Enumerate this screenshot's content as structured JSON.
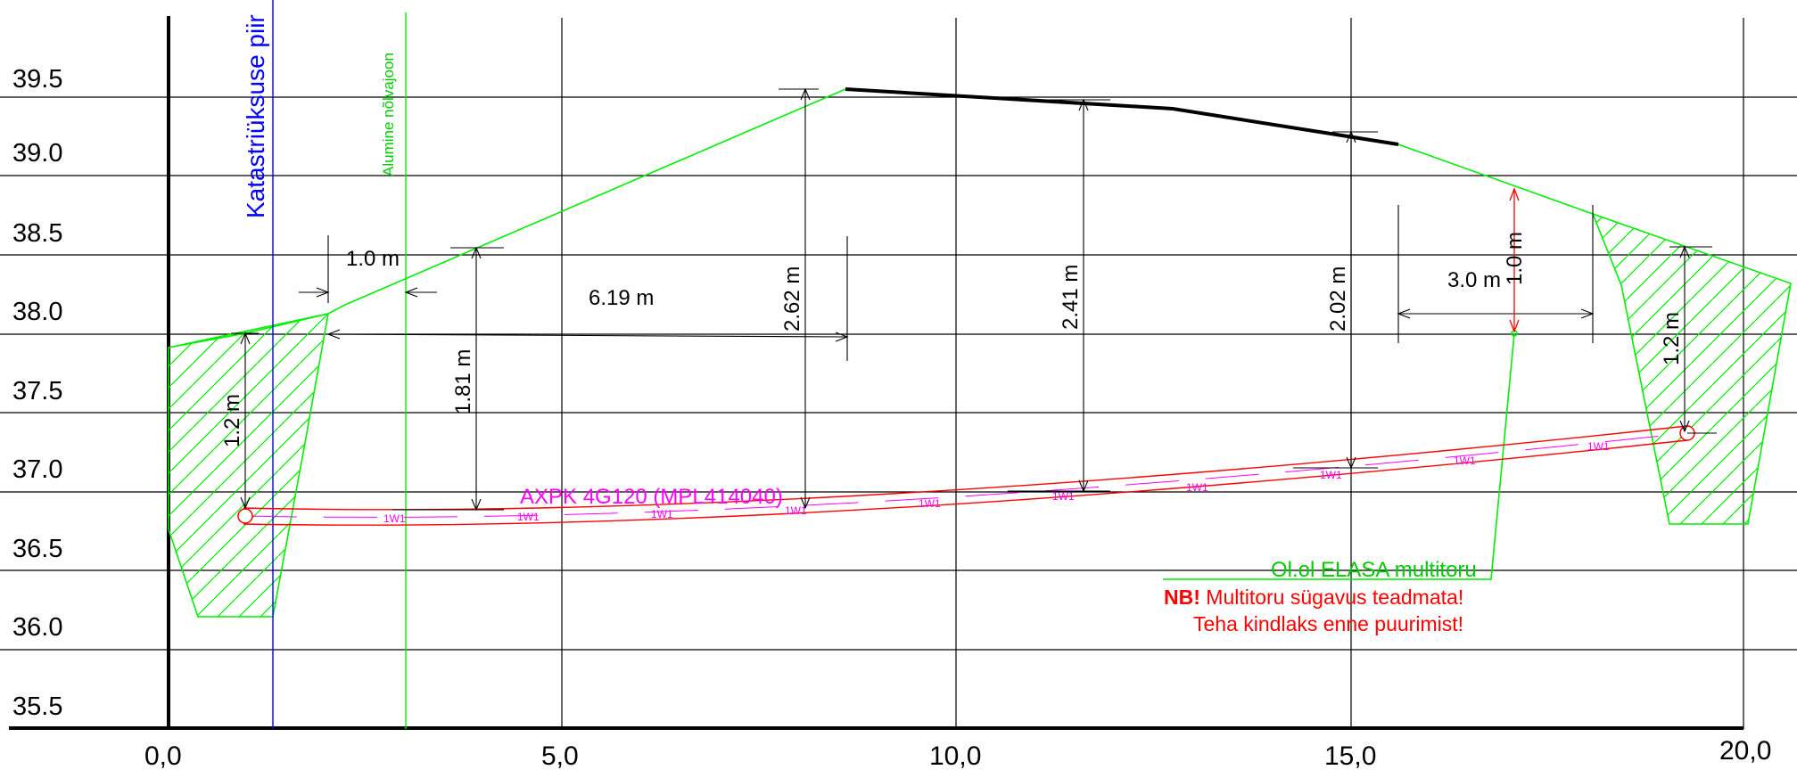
{
  "y_axis_labels": [
    "39.5",
    "39.0",
    "38.5",
    "38.0",
    "37.5",
    "37.0",
    "36.5",
    "36.0",
    "35.5"
  ],
  "x_axis_labels": [
    "0,0",
    "5,0",
    "10,0",
    "15,0",
    "20,0"
  ],
  "labels": {
    "cadastral_border": "Katastriüksuse piir",
    "lower_slope_line": "Alumine nõlvajoon",
    "cable": "AXPK 4G120 (MPL414040)",
    "cable_tag": "1W1",
    "multipipe": "Ol.ol ELASA multitoru",
    "note_nb": "NB!",
    "note_line1": " Multitoru sügavus teadmata!",
    "note_line2": "Teha kindlaks enne puurimist!"
  },
  "dimensions": {
    "d_1_0_top": "1.0 m",
    "d_6_19": "6.19 m",
    "d_2_62": "2.62 m",
    "d_2_41": "2.41 m",
    "d_2_02": "2.02 m",
    "d_3_0": "3.0 m",
    "d_1_0_red": "1.0 m",
    "d_1_2_left": "1.2 m",
    "d_1_81": "1.81 m",
    "d_1_2_right": "1.2 m"
  },
  "colors": {
    "grid": "#000000",
    "border": "#0000ff",
    "ground": "#00ee00",
    "road": "#000000",
    "cable": "#ff0000",
    "cable_tag": "#ff00ff",
    "note": "#ff0000"
  }
}
